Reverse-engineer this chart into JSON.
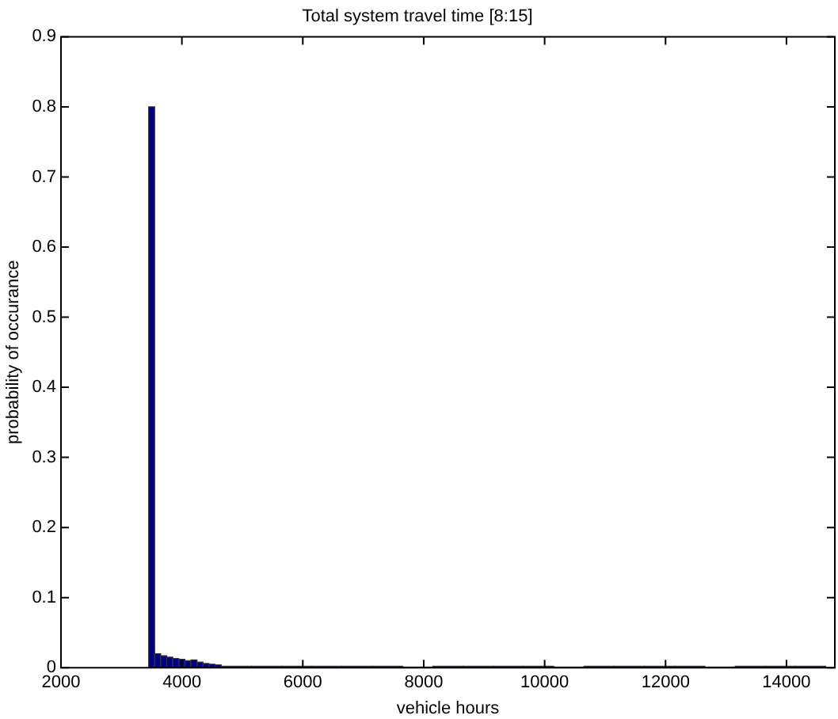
{
  "chart_data": {
    "type": "histogram",
    "title": "Total system travel time [8:15]",
    "xlabel": "vehicle hours",
    "ylabel": "probability of occurance",
    "bins": [
      3450,
      3550,
      3650,
      3750,
      3850,
      3950,
      4050,
      4150,
      4250,
      4350,
      4450,
      4550,
      4650,
      5150,
      5650,
      6150,
      6650,
      7150,
      7650,
      8150,
      8650,
      9150,
      9650,
      10150,
      10650,
      11150,
      11650,
      12150,
      12650,
      13150,
      13650,
      14150,
      14650
    ],
    "values": [
      0.8,
      0.02,
      0.017,
      0.015,
      0.013,
      0.012,
      0.01,
      0.011,
      0.008,
      0.006,
      0.005,
      0.004,
      0.002,
      0.002,
      0.002,
      0.002,
      0.002,
      0.002,
      0.001,
      0.002,
      0.002,
      0.002,
      0.002,
      0.001,
      0.002,
      0.002,
      0.002,
      0.002,
      0.001,
      0.002,
      0.002,
      0.002
    ],
    "color": "#000080",
    "xlim": [
      2000,
      14800
    ],
    "xticks": [
      2000,
      4000,
      6000,
      8000,
      10000,
      12000,
      14000
    ],
    "ylim": [
      0,
      0.9
    ],
    "yticks": [
      0,
      0.1,
      0.2,
      0.3,
      0.4,
      0.5,
      0.6,
      0.7,
      0.8,
      0.9
    ],
    "grid": false,
    "legend": false
  }
}
